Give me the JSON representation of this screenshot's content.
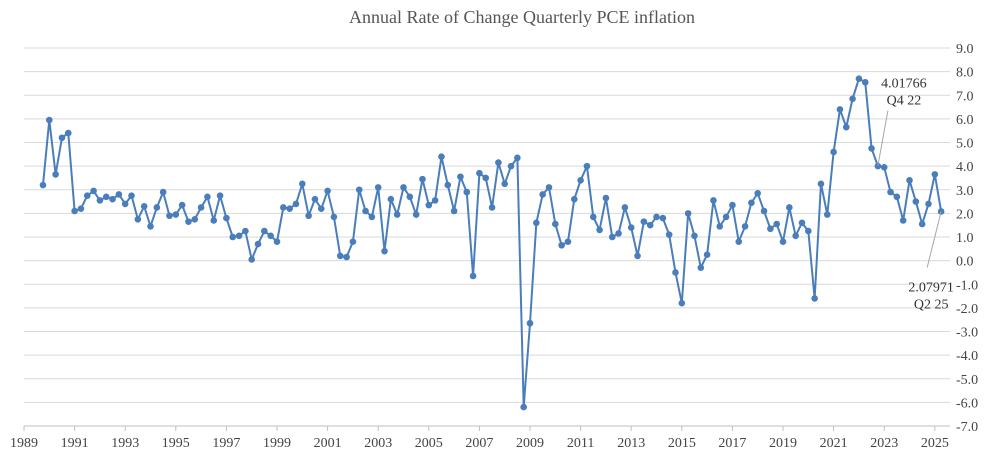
{
  "chart_data": {
    "type": "line",
    "title": "Annual Rate of Change Quarterly PCE inflation",
    "xlabel": "",
    "ylabel": "",
    "x_start": 1989.75,
    "x_step": 0.25,
    "xlim": [
      1989,
      2025.6
    ],
    "ylim": [
      -7,
      9
    ],
    "x_ticks": [
      "1989",
      "1991",
      "1993",
      "1995",
      "1997",
      "1999",
      "2001",
      "2003",
      "2005",
      "2007",
      "2009",
      "2011",
      "2013",
      "2015",
      "2017",
      "2019",
      "2021",
      "2023",
      "2025"
    ],
    "y_ticks": [
      "9.0",
      "8.0",
      "7.0",
      "6.0",
      "5.0",
      "4.0",
      "3.0",
      "2.0",
      "1.0",
      "0.0",
      "-1.0",
      "-2.0",
      "-3.0",
      "-4.0",
      "-5.0",
      "-6.0",
      "-7.0"
    ],
    "grid": true,
    "legend": "none",
    "line_color": "#4a7ebb",
    "values": [
      3.2,
      5.95,
      3.65,
      5.2,
      5.4,
      2.1,
      2.2,
      2.75,
      2.95,
      2.55,
      2.7,
      2.6,
      2.8,
      2.4,
      2.75,
      1.75,
      2.3,
      1.45,
      2.25,
      2.9,
      1.9,
      1.95,
      2.35,
      1.65,
      1.75,
      2.25,
      2.7,
      1.7,
      2.75,
      1.8,
      1.0,
      1.05,
      1.25,
      0.05,
      0.7,
      1.25,
      1.05,
      0.8,
      2.25,
      2.2,
      2.4,
      3.25,
      1.9,
      2.6,
      2.2,
      2.95,
      1.85,
      0.2,
      0.15,
      0.8,
      3.0,
      2.1,
      1.85,
      3.1,
      0.4,
      2.6,
      1.95,
      3.1,
      2.7,
      1.95,
      3.45,
      2.35,
      2.55,
      4.4,
      3.2,
      2.1,
      3.55,
      2.9,
      -0.65,
      3.7,
      3.5,
      2.25,
      4.15,
      3.25,
      4.0,
      4.35,
      -6.2,
      -2.65,
      1.6,
      2.8,
      3.1,
      1.55,
      0.65,
      0.8,
      2.6,
      3.4,
      4.0,
      1.85,
      1.3,
      2.65,
      1.0,
      1.15,
      2.25,
      1.4,
      0.2,
      1.65,
      1.5,
      1.85,
      1.8,
      1.1,
      -0.5,
      -1.8,
      2.0,
      1.05,
      -0.3,
      0.25,
      2.55,
      1.45,
      1.85,
      2.35,
      0.8,
      1.45,
      2.45,
      2.85,
      2.1,
      1.35,
      1.55,
      0.8,
      2.25,
      1.05,
      1.6,
      1.25,
      -1.6,
      3.25,
      1.95,
      4.6,
      6.4,
      5.65,
      6.85,
      7.7,
      7.55,
      4.75,
      4.0,
      3.95,
      2.9,
      2.7,
      1.7,
      3.4,
      2.5,
      1.55,
      2.4,
      3.65,
      2.08
    ],
    "annotations": [
      {
        "text_value": "4.01766",
        "text_period": "Q4 22",
        "x": 2022.75,
        "y": 4.01766
      },
      {
        "text_value": "2.07971",
        "text_period": "Q2 25",
        "x": 2025.25,
        "y": 2.07971
      }
    ]
  }
}
